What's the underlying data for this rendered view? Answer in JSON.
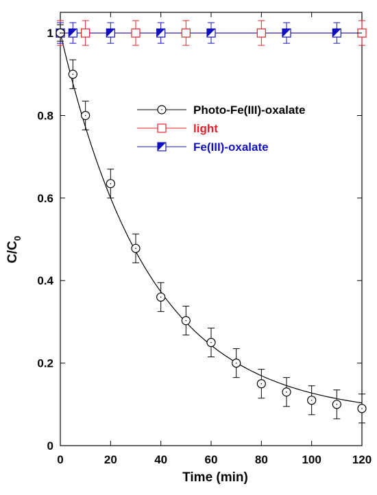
{
  "chart_data": {
    "type": "scatter",
    "xlabel": "Time (min)",
    "ylabel": "C/C",
    "ylabel_subscript": "0",
    "xlim": [
      0,
      120
    ],
    "ylim": [
      0,
      1.05
    ],
    "x_ticks": [
      0,
      20,
      40,
      60,
      80,
      100,
      120
    ],
    "x_tick_labels": [
      "0",
      "20",
      "40",
      "60",
      "80",
      "100",
      "120"
    ],
    "y_ticks": [
      0,
      0.2,
      0.4,
      0.6,
      0.8,
      1
    ],
    "y_tick_labels": [
      "0",
      "0.2",
      "0.4",
      "0.6",
      "0.8",
      "1"
    ],
    "grid": false,
    "legend_position": "upper-right",
    "series": [
      {
        "name": "Photo-Fe(III)-oxalate",
        "color": "#000000",
        "marker": "circle",
        "x": [
          0,
          5,
          10,
          20,
          30,
          40,
          50,
          60,
          70,
          80,
          90,
          100,
          110,
          120
        ],
        "y": [
          1.0,
          0.9,
          0.8,
          0.635,
          0.478,
          0.36,
          0.303,
          0.25,
          0.2,
          0.15,
          0.13,
          0.11,
          0.1,
          0.09
        ],
        "error": [
          0.02,
          0.035,
          0.035,
          0.035,
          0.035,
          0.035,
          0.035,
          0.035,
          0.035,
          0.035,
          0.035,
          0.035,
          0.035,
          0.035
        ]
      },
      {
        "name": "light",
        "color": "#e8202a",
        "marker": "open-square",
        "x": [
          0,
          10,
          30,
          50,
          80,
          120
        ],
        "y": [
          1.0,
          1.0,
          1.0,
          1.0,
          1.0,
          1.0
        ],
        "error": [
          0.03,
          0.03,
          0.03,
          0.03,
          0.03,
          0.03
        ]
      },
      {
        "name": "Fe(III)-oxalate",
        "color": "#1010c0",
        "marker": "half-filled-square",
        "x": [
          0,
          5,
          20,
          40,
          60,
          90,
          110
        ],
        "y": [
          1.0,
          1.0,
          1.0,
          1.0,
          1.0,
          1.0,
          1.0
        ],
        "error": [
          0.025,
          0.025,
          0.025,
          0.025,
          0.025,
          0.025,
          0.025
        ]
      }
    ]
  }
}
